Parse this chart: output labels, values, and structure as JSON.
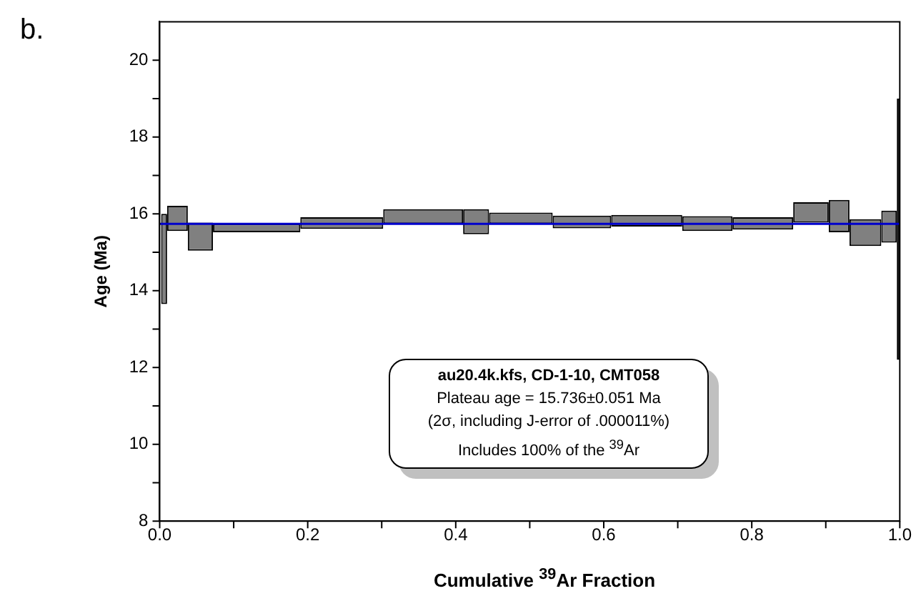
{
  "chart_data": {
    "type": "histogram",
    "xlabel": "Cumulative $^{39}$Ar Fraction",
    "ylabel": "Age (Ma)",
    "bins": [
      0.002,
      0.01,
      0.038,
      0.072,
      0.19,
      0.302,
      0.41,
      0.445,
      0.531,
      0.61,
      0.706,
      0.774,
      0.856,
      0.904,
      0.932,
      0.975,
      0.996,
      1.0
    ],
    "base": [
      13.65,
      15.55,
      15.04,
      15.52,
      15.61,
      15.74,
      15.47,
      15.74,
      15.62,
      15.67,
      15.55,
      15.59,
      15.77,
      15.52,
      15.16,
      15.25,
      12.2
    ],
    "values": [
      2.35,
      0.66,
      0.73,
      0.22,
      0.3,
      0.38,
      0.65,
      0.29,
      0.33,
      0.3,
      0.39,
      0.32,
      0.53,
      0.84,
      0.7,
      0.83,
      6.8
    ],
    "colors": [
      "#808080",
      "#808080",
      "#808080",
      "#808080",
      "#808080",
      "#808080",
      "#808080",
      "#808080",
      "#808080",
      "#808080",
      "#808080",
      "#808080",
      "#808080",
      "#808080",
      "#808080",
      "#808080",
      "#000000"
    ],
    "xlim": [
      0,
      1
    ],
    "xticks": [
      {
        "value": 0,
        "label": "0.0"
      },
      {
        "value": 0.1,
        "label": null
      },
      {
        "value": 0.2,
        "label": "0.2"
      },
      {
        "value": 0.3,
        "label": null
      },
      {
        "value": 0.4,
        "label": "0.4"
      },
      {
        "value": 0.5,
        "label": null
      },
      {
        "value": 0.6,
        "label": "0.6"
      },
      {
        "value": 0.7,
        "label": null
      },
      {
        "value": 0.8,
        "label": "0.8"
      },
      {
        "value": 0.9,
        "label": null
      },
      {
        "value": 1,
        "label": "1.0"
      }
    ],
    "ylim": [
      8,
      21
    ],
    "yticks": [
      8,
      {
        "value": 9,
        "label": null
      },
      10,
      {
        "value": 11,
        "label": null
      },
      12,
      {
        "value": 13,
        "label": null
      },
      14,
      {
        "value": 15,
        "label": null
      },
      16,
      {
        "value": 17,
        "label": null
      },
      18,
      {
        "value": 19,
        "label": null
      },
      20
    ],
    "ref_lines": [
      {
        "axis": "y",
        "value": 15.736,
        "label": null,
        "color": "#0000cc"
      }
    ],
    "annotations": [
      "b.",
      "au20.4k.kfs, CD-1-10, CMT058",
      "Plateau age = 15.736±0.051 Ma",
      "(2σ, including J-error of .000011%)",
      "Includes 100% of the $^{39}$Ar"
    ]
  }
}
